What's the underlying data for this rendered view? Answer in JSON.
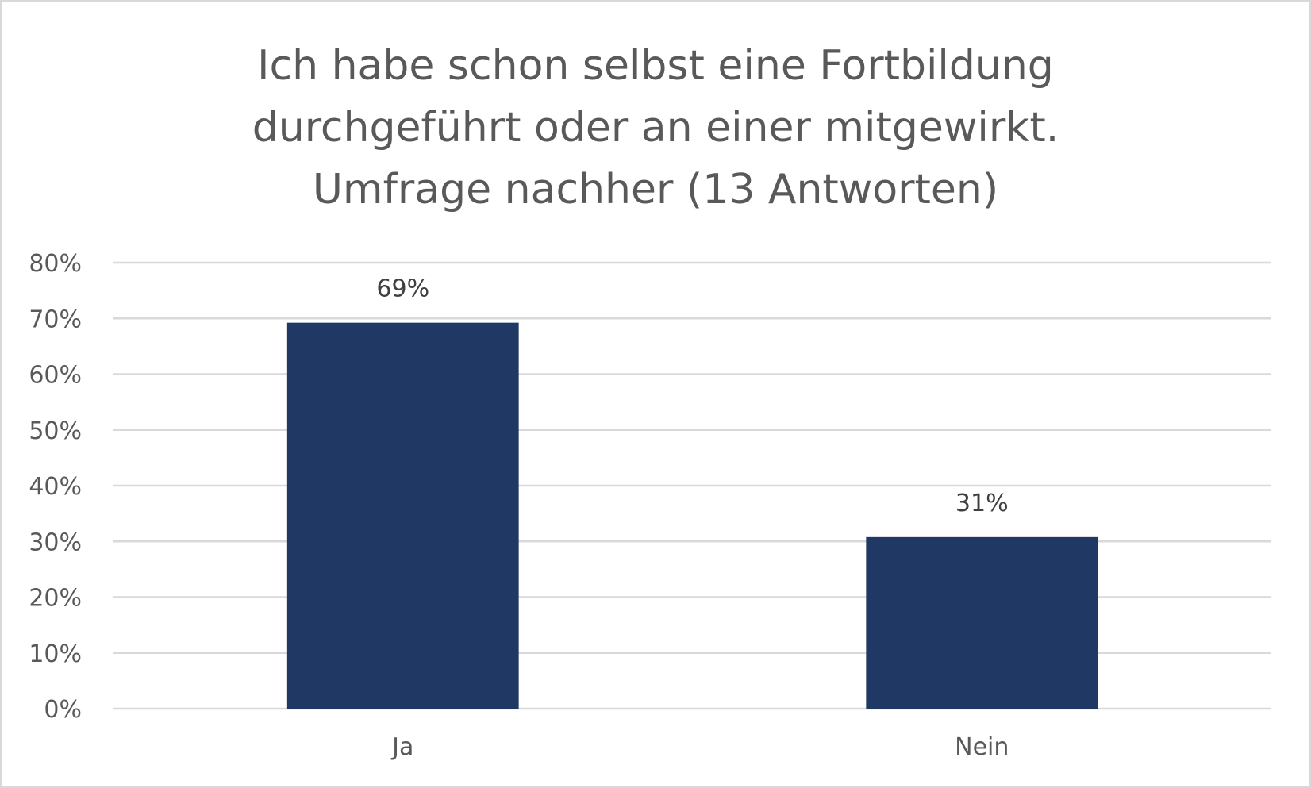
{
  "chart_data": {
    "type": "bar",
    "title_lines": [
      "Ich habe schon selbst eine Fortbildung",
      "durchgeführt oder an einer mitgewirkt.",
      "Umfrage nachher (13 Antworten)"
    ],
    "categories": [
      "Ja",
      "Nein"
    ],
    "values": [
      69.23,
      30.77
    ],
    "data_labels": [
      "69%",
      "31%"
    ],
    "xlabel": "",
    "ylabel": "",
    "ylim": [
      0,
      80
    ],
    "yticks": [
      "0%",
      "10%",
      "20%",
      "30%",
      "40%",
      "50%",
      "60%",
      "70%",
      "80%"
    ],
    "grid": true,
    "legend": "none",
    "bar_color": "#203864",
    "grid_color": "#d9d9d9"
  }
}
